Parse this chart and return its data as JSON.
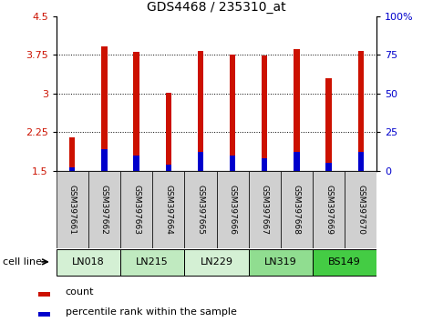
{
  "title": "GDS4468 / 235310_at",
  "samples": [
    "GSM397661",
    "GSM397662",
    "GSM397663",
    "GSM397664",
    "GSM397665",
    "GSM397666",
    "GSM397667",
    "GSM397668",
    "GSM397669",
    "GSM397670"
  ],
  "count_values": [
    2.15,
    3.91,
    3.8,
    3.01,
    3.83,
    3.75,
    3.74,
    3.86,
    3.3,
    3.83
  ],
  "percentile_values": [
    2,
    14,
    10,
    4,
    12,
    10,
    8,
    12,
    5,
    12
  ],
  "ylim_left": [
    1.5,
    4.5
  ],
  "ylim_right": [
    0,
    100
  ],
  "yticks_left": [
    1.5,
    2.25,
    3.0,
    3.75,
    4.5
  ],
  "yticks_right": [
    0,
    25,
    50,
    75,
    100
  ],
  "ytick_labels_left": [
    "1.5",
    "2.25",
    "3",
    "3.75",
    "4.5"
  ],
  "ytick_labels_right": [
    "0",
    "25",
    "50",
    "75",
    "100%"
  ],
  "bar_color_red": "#cc1100",
  "bar_color_blue": "#0000cc",
  "bar_width": 0.18,
  "blue_bar_width": 0.18,
  "cell_lines": [
    {
      "label": "LN018",
      "start": 0,
      "end": 2,
      "color": "#d4f0d4"
    },
    {
      "label": "LN215",
      "start": 2,
      "end": 4,
      "color": "#c0eac0"
    },
    {
      "label": "LN229",
      "start": 4,
      "end": 6,
      "color": "#d4f0d4"
    },
    {
      "label": "LN319",
      "start": 6,
      "end": 8,
      "color": "#90dd90"
    },
    {
      "label": "BS149",
      "start": 8,
      "end": 10,
      "color": "#44cc44"
    }
  ],
  "cell_line_label": "cell line",
  "legend_count": "count",
  "legend_percentile": "percentile rank within the sample",
  "bg_color": "#ffffff",
  "plot_bg": "#ffffff",
  "sample_box_color": "#d0d0d0",
  "tick_label_color_left": "#cc1100",
  "tick_label_color_right": "#0000cc"
}
